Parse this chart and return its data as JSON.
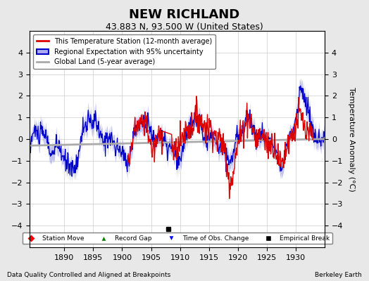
{
  "title": "NEW RICHLAND",
  "subtitle": "43.883 N, 93.500 W (United States)",
  "ylabel": "Temperature Anomaly (°C)",
  "xlabel_note": "Data Quality Controlled and Aligned at Breakpoints",
  "credit": "Berkeley Earth",
  "xmin": 1884,
  "xmax": 1935,
  "ymin": -5,
  "ymax": 5,
  "xticks": [
    1890,
    1895,
    1900,
    1905,
    1910,
    1915,
    1920,
    1925,
    1930
  ],
  "yticks": [
    -4,
    -3,
    -2,
    -1,
    0,
    1,
    2,
    3,
    4
  ],
  "empirical_break_x": 1908,
  "empirical_break_y": -4.15,
  "background_color": "#e8e8e8",
  "plot_bg_color": "#ffffff",
  "grid_color": "#cccccc",
  "red_color": "#dd0000",
  "blue_color": "#0000cc",
  "blue_fill_color": "#aaaaee",
  "gray_color": "#aaaaaa",
  "legend1_label": "This Temperature Station (12-month average)",
  "legend2_label": "Regional Expectation with 95% uncertainty",
  "legend3_label": "Global Land (5-year average)",
  "bottom_legend": [
    "Station Move",
    "Record Gap",
    "Time of Obs. Change",
    "Empirical Break"
  ]
}
